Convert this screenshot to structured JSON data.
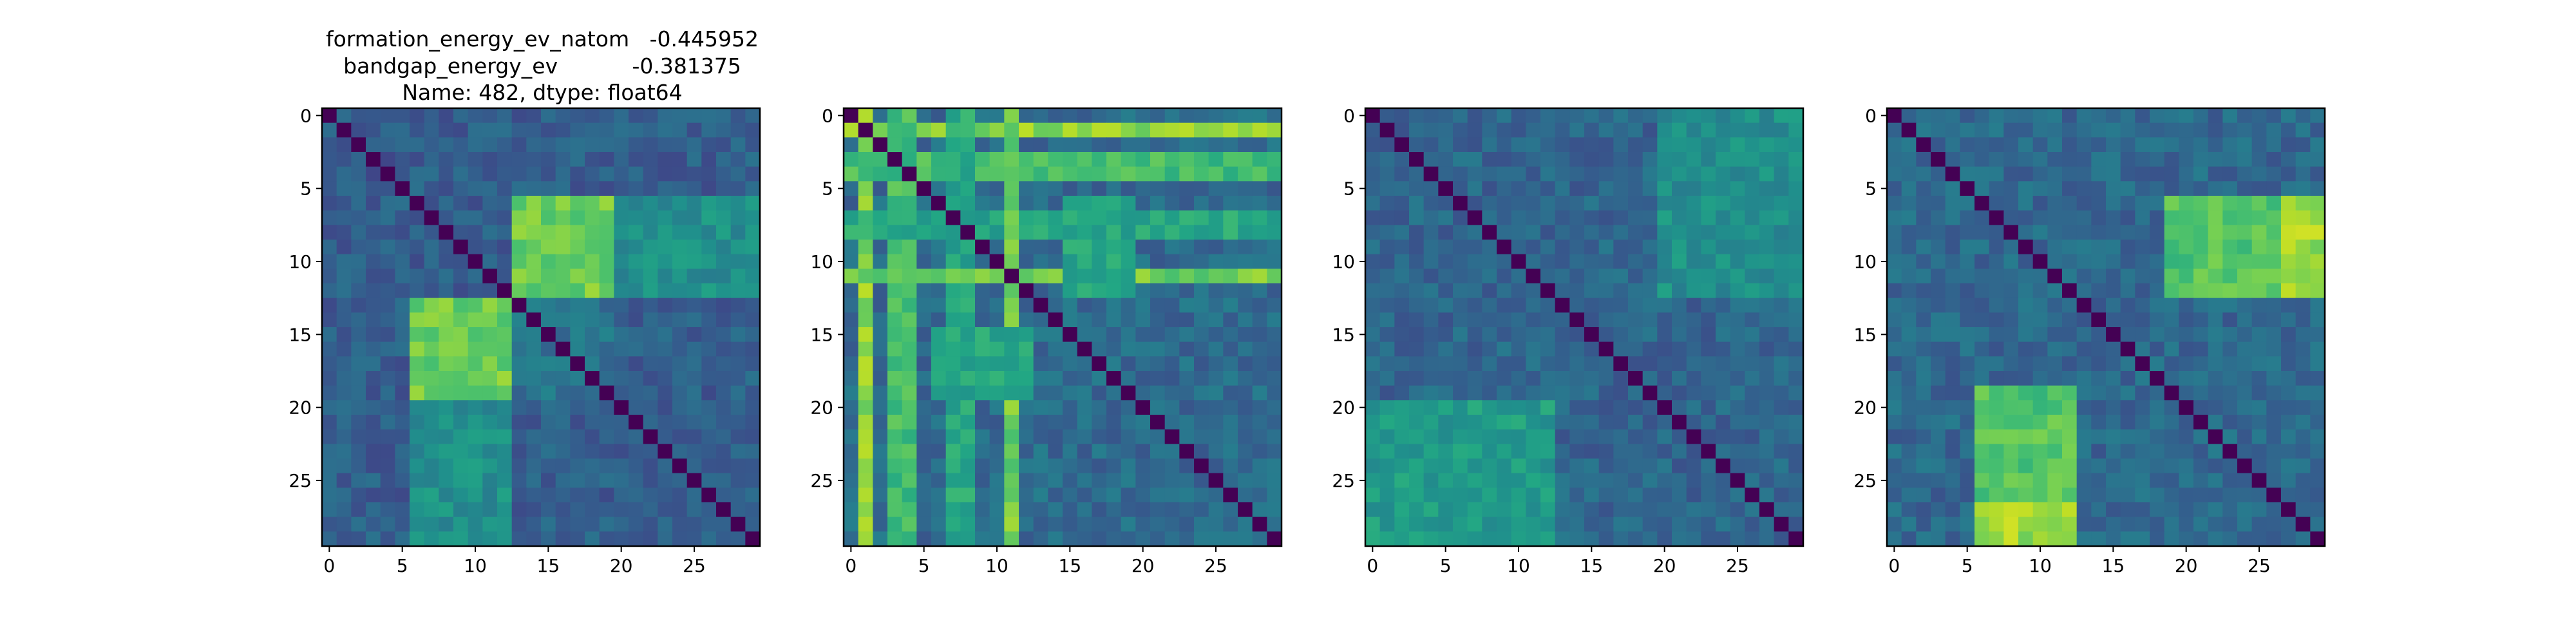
{
  "figure": {
    "title_lines": [
      "formation_energy_ev_natom   -0.445952",
      "bandgap_energy_ev           -0.381375",
      "Name: 482, dtype: float64"
    ]
  },
  "chart_data": [
    {
      "type": "heatmap",
      "colormap": "viridis",
      "size": 30,
      "x_ticks": [
        0,
        5,
        10,
        15,
        20,
        25
      ],
      "y_ticks": [
        0,
        5,
        10,
        15,
        20,
        25
      ],
      "x_tick_labels": [
        "0",
        "5",
        "10",
        "15",
        "20",
        "25"
      ],
      "y_tick_labels": [
        "0",
        "5",
        "10",
        "15",
        "20",
        "25"
      ],
      "diagonal_value": 0,
      "base_value": 0.3,
      "blocks": [
        {
          "rows": [
            6,
            12
          ],
          "cols": [
            13,
            19
          ],
          "value": 0.78
        },
        {
          "rows": [
            13,
            19
          ],
          "cols": [
            6,
            12
          ],
          "value": 0.78
        },
        {
          "rows": [
            13,
            19
          ],
          "cols": [
            13,
            19
          ],
          "value": 0.38
        },
        {
          "rows": [
            20,
            29
          ],
          "cols": [
            6,
            12
          ],
          "value": 0.5
        },
        {
          "rows": [
            6,
            12
          ],
          "cols": [
            20,
            29
          ],
          "value": 0.5
        },
        {
          "rows": [
            0,
            5
          ],
          "cols": [
            0,
            5
          ],
          "value": 0.28
        }
      ]
    },
    {
      "type": "heatmap",
      "colormap": "viridis",
      "size": 30,
      "x_ticks": [
        0,
        5,
        10,
        15,
        20,
        25
      ],
      "y_ticks": [
        0,
        5,
        10,
        15,
        20,
        25
      ],
      "x_tick_labels": [
        "0",
        "5",
        "10",
        "15",
        "20",
        "25"
      ],
      "y_tick_labels": [
        "0",
        "5",
        "10",
        "15",
        "20",
        "25"
      ],
      "diagonal_value": 0,
      "base_value": 0.35,
      "blocks": [
        {
          "rows": [
            0,
            29
          ],
          "cols": [
            1,
            1
          ],
          "value": 0.82
        },
        {
          "rows": [
            1,
            1
          ],
          "cols": [
            0,
            29
          ],
          "value": 0.82
        },
        {
          "rows": [
            0,
            29
          ],
          "cols": [
            3,
            4
          ],
          "value": 0.7
        },
        {
          "rows": [
            3,
            4
          ],
          "cols": [
            0,
            29
          ],
          "value": 0.7
        },
        {
          "rows": [
            0,
            29
          ],
          "cols": [
            7,
            8
          ],
          "value": 0.6
        },
        {
          "rows": [
            7,
            8
          ],
          "cols": [
            0,
            29
          ],
          "value": 0.6
        },
        {
          "rows": [
            0,
            29
          ],
          "cols": [
            11,
            11
          ],
          "value": 0.78
        },
        {
          "rows": [
            11,
            11
          ],
          "cols": [
            0,
            29
          ],
          "value": 0.78
        },
        {
          "rows": [
            6,
            12
          ],
          "cols": [
            15,
            19
          ],
          "value": 0.6
        },
        {
          "rows": [
            15,
            19
          ],
          "cols": [
            6,
            12
          ],
          "value": 0.6
        }
      ]
    },
    {
      "type": "heatmap",
      "colormap": "viridis",
      "size": 30,
      "x_ticks": [
        0,
        5,
        10,
        15,
        20,
        25
      ],
      "y_ticks": [
        0,
        5,
        10,
        15,
        20,
        25
      ],
      "x_tick_labels": [
        "0",
        "5",
        "10",
        "15",
        "20",
        "25"
      ],
      "y_tick_labels": [
        "0",
        "5",
        "10",
        "15",
        "20",
        "25"
      ],
      "diagonal_value": 0,
      "base_value": 0.33,
      "blocks": [
        {
          "rows": [
            6,
            12
          ],
          "cols": [
            21,
            26
          ],
          "value": 0.8
        },
        {
          "rows": [
            21,
            26
          ],
          "cols": [
            6,
            12
          ],
          "value": 0.8
        },
        {
          "rows": [
            20,
            29
          ],
          "cols": [
            0,
            12
          ],
          "value": 0.55
        },
        {
          "rows": [
            0,
            12
          ],
          "cols": [
            20,
            29
          ],
          "value": 0.5
        }
      ]
    },
    {
      "type": "heatmap",
      "colormap": "viridis",
      "size": 30,
      "x_ticks": [
        0,
        5,
        10,
        15,
        20,
        25
      ],
      "y_ticks": [
        0,
        5,
        10,
        15,
        20,
        25
      ],
      "x_tick_labels": [
        "0",
        "5",
        "10",
        "15",
        "20",
        "25"
      ],
      "y_tick_labels": [
        "0",
        "5",
        "10",
        "15",
        "20",
        "25"
      ],
      "diagonal_value": 0,
      "base_value": 0.34,
      "blocks": [
        {
          "rows": [
            6,
            12
          ],
          "cols": [
            19,
            29
          ],
          "value": 0.72
        },
        {
          "rows": [
            19,
            29
          ],
          "cols": [
            6,
            12
          ],
          "value": 0.72
        },
        {
          "rows": [
            27,
            29
          ],
          "cols": [
            6,
            12
          ],
          "value": 0.85
        },
        {
          "rows": [
            6,
            12
          ],
          "cols": [
            27,
            29
          ],
          "value": 0.85
        }
      ]
    }
  ]
}
